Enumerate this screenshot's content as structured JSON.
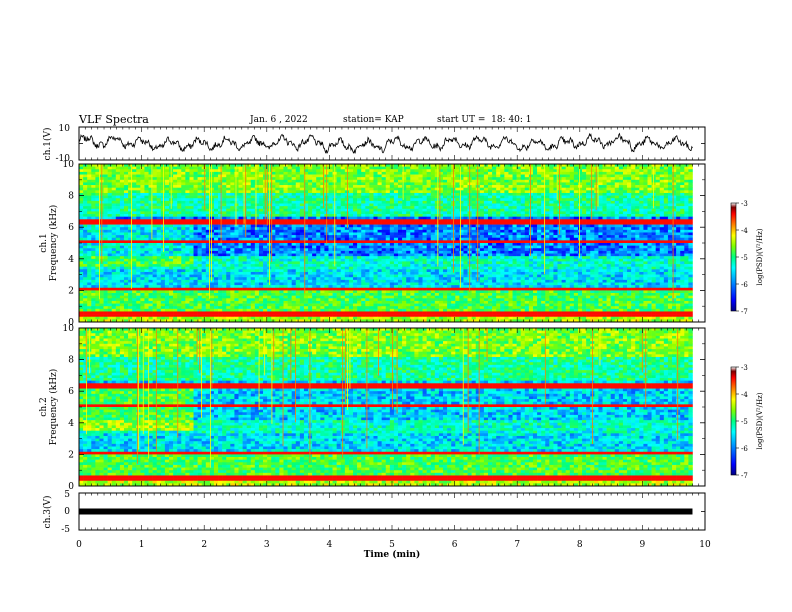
{
  "header": {
    "title": "VLF Spectra",
    "date": "Jan. 6 , 2022",
    "station": "station= KAP",
    "start_ut": "start UT =  18: 40: 1"
  },
  "chart_data": [
    {
      "type": "line",
      "panel": "ch1-waveform",
      "ylabel": "ch.1(V)",
      "ylim": [
        -10,
        10
      ],
      "y_ticks": [
        "10",
        "-10"
      ],
      "xlim": [
        0,
        10
      ],
      "x_range_data": [
        0,
        9.8
      ],
      "description_values": "continuous noisy signal fluctuating roughly between -6 and +6 V",
      "approx_levels": [
        2,
        -1,
        0,
        1,
        -2,
        0,
        1,
        -1,
        2,
        0
      ]
    },
    {
      "type": "heatmap",
      "panel": "ch1-spectrogram",
      "ylabel_line1": "ch.1",
      "ylabel_line2": "Frequency (kHz)",
      "ylim": [
        0,
        10
      ],
      "y_ticks": [
        "0",
        "2",
        "4",
        "6",
        "8",
        "10"
      ],
      "xlim": [
        0,
        10
      ],
      "x_range_data": [
        0,
        9.8
      ],
      "colorbar": {
        "label": "log(PSD)(V²/Hz)",
        "range": [
          -7,
          -3
        ],
        "ticks": [
          "-3",
          "-4",
          "-5",
          "-6",
          "-7"
        ]
      }
    },
    {
      "type": "heatmap",
      "panel": "ch2-spectrogram",
      "ylabel_line1": "ch.2",
      "ylabel_line2": "Frequency (kHz)",
      "ylim": [
        0,
        10
      ],
      "y_ticks": [
        "0",
        "2",
        "4",
        "6",
        "8",
        "10"
      ],
      "xlim": [
        0,
        10
      ],
      "x_range_data": [
        0,
        9.8
      ],
      "colorbar": {
        "label": "log(PSD)(V²/Hz)",
        "range": [
          -7,
          -3
        ],
        "ticks": [
          "-3",
          "-4",
          "-5",
          "-6",
          "-7"
        ]
      }
    },
    {
      "type": "line",
      "panel": "ch3-waveform",
      "ylabel": "ch.3(V)",
      "ylim": [
        -5,
        5
      ],
      "y_ticks": [
        "5",
        "0",
        "-5"
      ],
      "xlim": [
        0,
        10
      ],
      "x_range_data": [
        0,
        9.8
      ],
      "constant_value": 0
    }
  ],
  "x_axis": {
    "label": "Time (min)",
    "ticks": [
      "0",
      "1",
      "2",
      "3",
      "4",
      "5",
      "6",
      "7",
      "8",
      "9",
      "10"
    ]
  },
  "colors": {
    "colormap": [
      "#000080",
      "#0000ff",
      "#0080ff",
      "#00ffff",
      "#00ff80",
      "#80ff00",
      "#ffff00",
      "#ff8000",
      "#ff0000",
      "#800000",
      "#ffffff"
    ],
    "line": "#000000"
  }
}
